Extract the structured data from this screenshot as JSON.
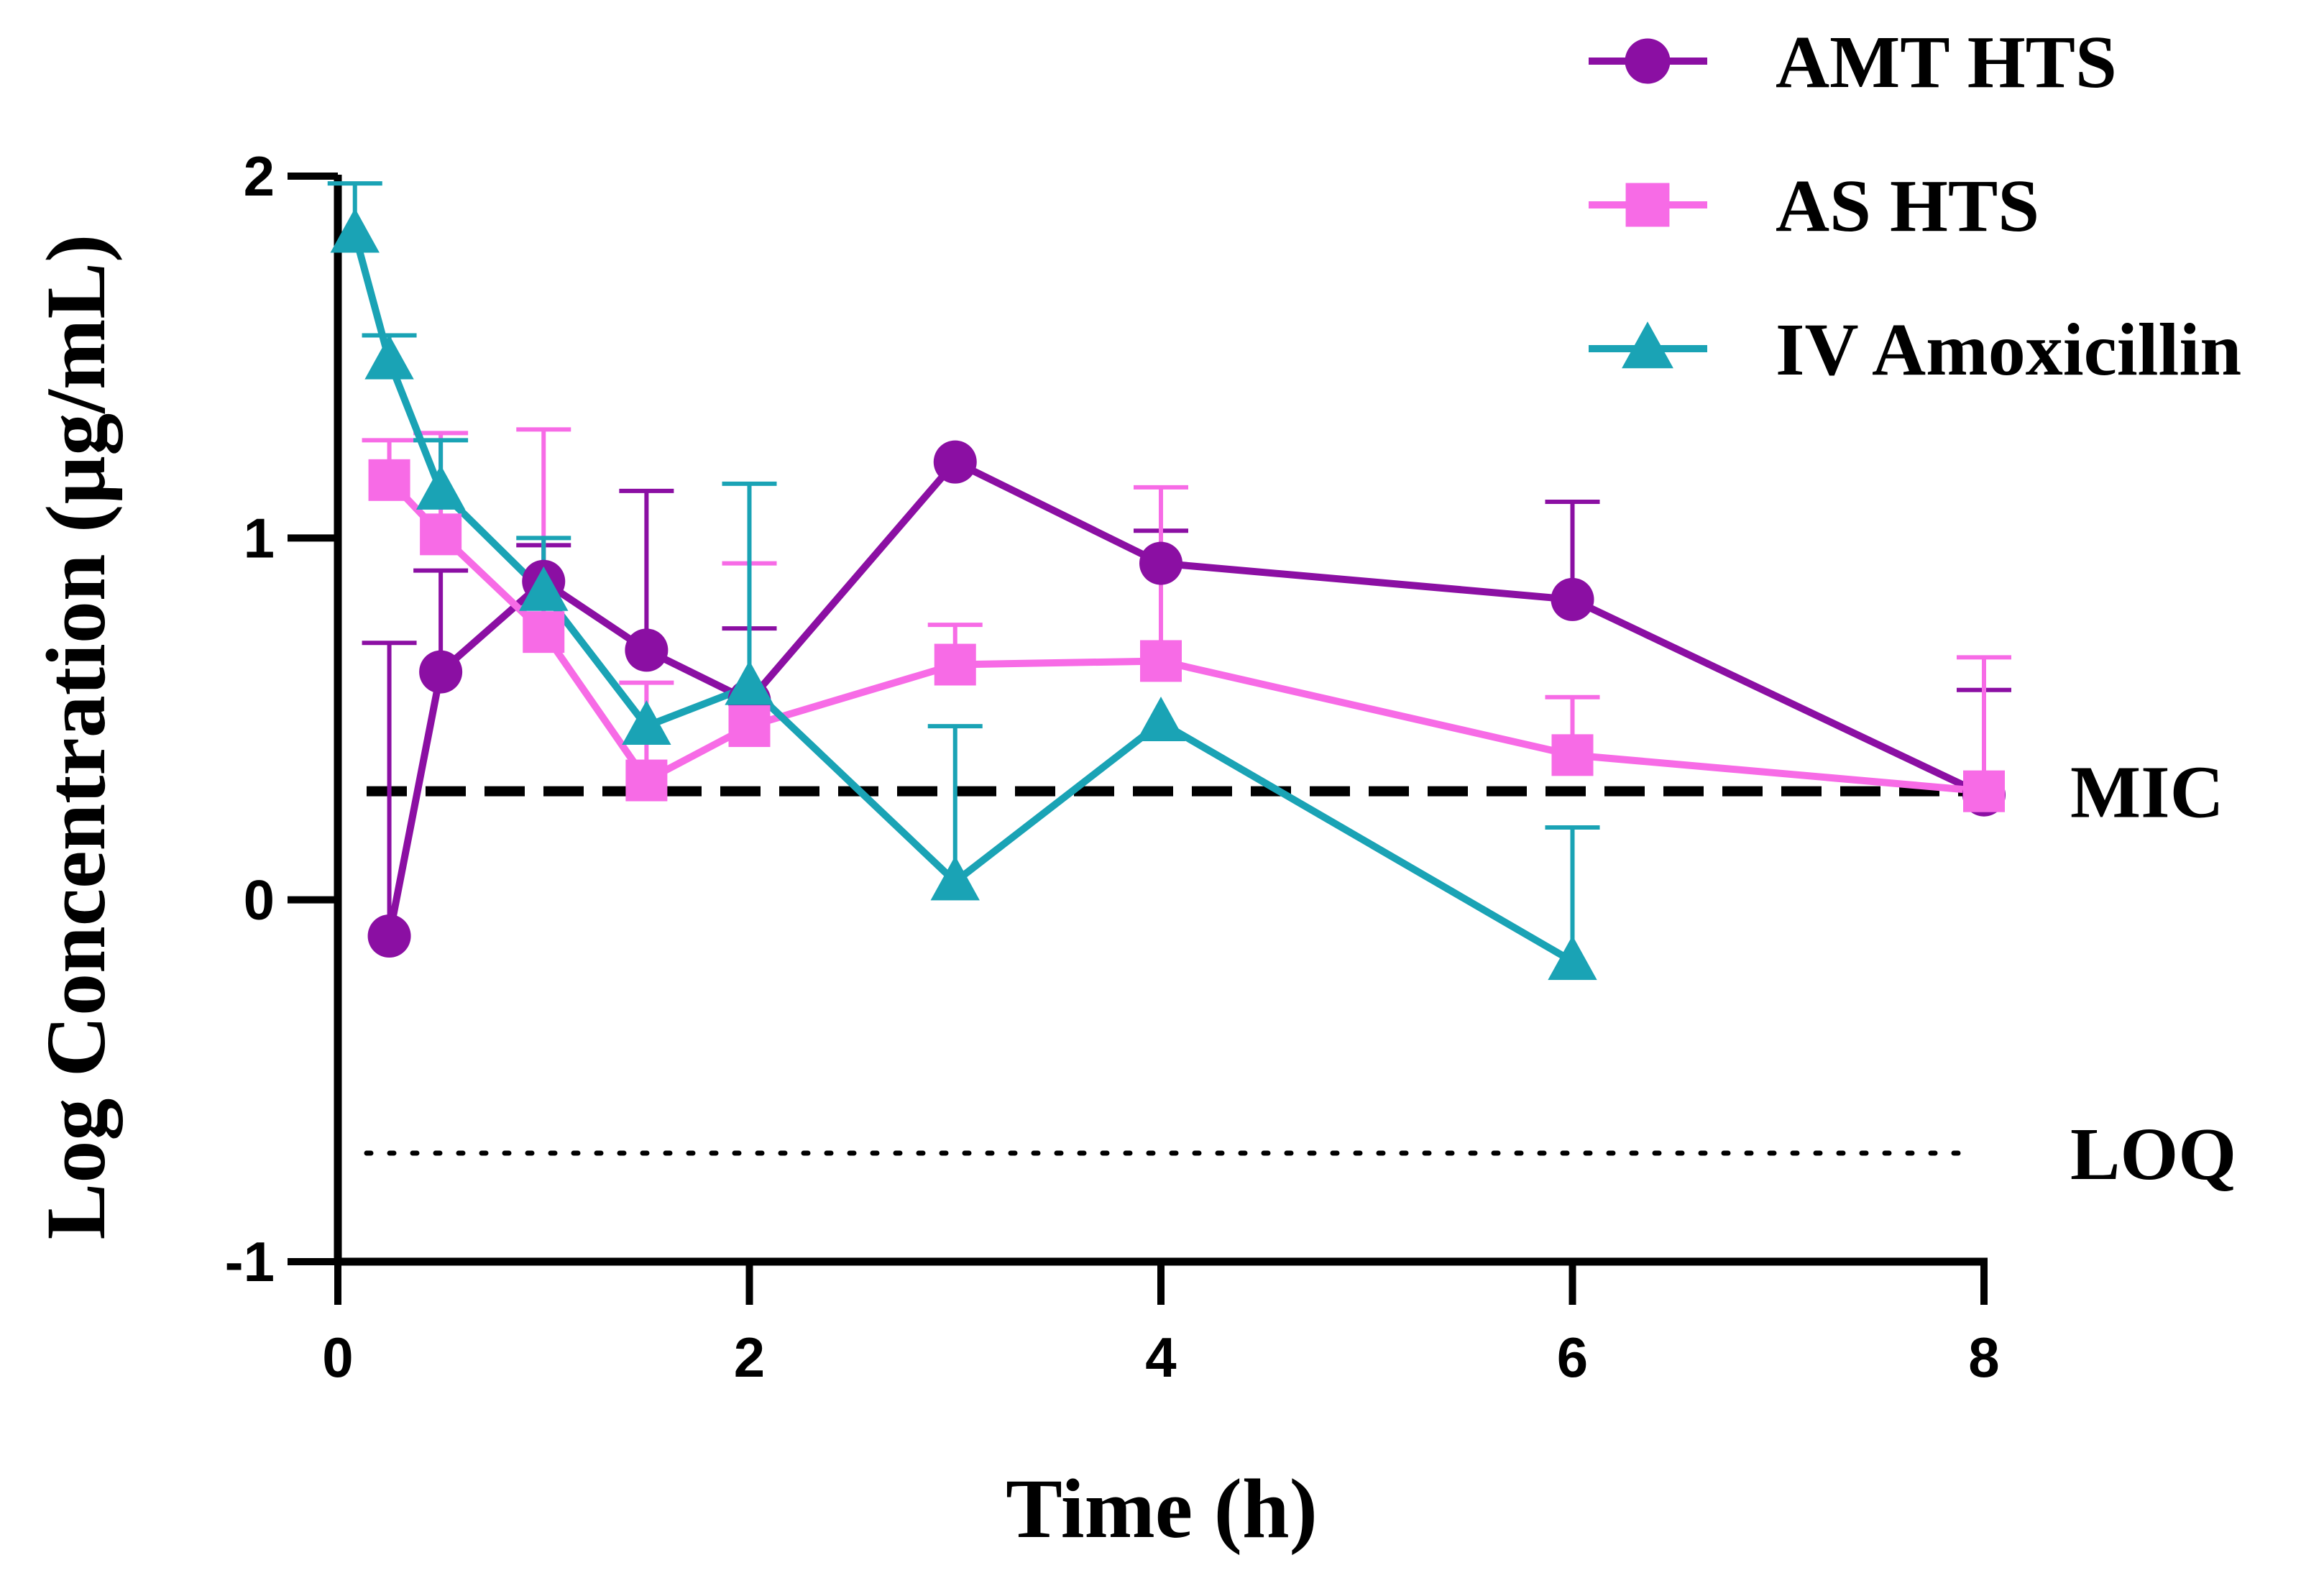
{
  "chart_data": {
    "type": "line",
    "title": "",
    "xlabel": "Time (h)",
    "ylabel": "Log Concentration (µg/mL)",
    "xlim": [
      0,
      8
    ],
    "ylim": [
      -1,
      2
    ],
    "x_ticks": [
      0,
      2,
      4,
      6,
      8
    ],
    "y_ticks": [
      -1,
      0,
      1,
      2
    ],
    "x_tick_labels": [
      "0",
      "2",
      "4",
      "6",
      "8"
    ],
    "y_tick_labels": [
      "-1",
      "0",
      "1",
      "2"
    ],
    "grid": false,
    "legend_position": "top-right",
    "series": [
      {
        "name": "AMT HTS",
        "color": "#8b0fa3",
        "marker": "circle",
        "x": [
          0.25,
          0.5,
          1,
          1.5,
          2,
          3,
          4,
          6,
          8
        ],
        "y": [
          -0.1,
          0.63,
          0.88,
          0.69,
          0.55,
          1.21,
          0.93,
          0.83,
          0.29
        ],
        "error_upper": [
          0.71,
          0.91,
          0.98,
          1.13,
          0.75,
          1.21,
          1.02,
          1.1,
          0.58
        ]
      },
      {
        "name": "AS HTS",
        "color": "#f76be6",
        "marker": "square",
        "x": [
          0.25,
          0.5,
          1,
          1.5,
          2,
          3,
          4,
          6,
          8
        ],
        "y": [
          1.16,
          1.01,
          0.74,
          0.33,
          0.48,
          0.65,
          0.66,
          0.4,
          0.3
        ],
        "error_upper": [
          1.27,
          1.29,
          1.3,
          0.6,
          0.93,
          0.76,
          1.14,
          0.56,
          0.67
        ]
      },
      {
        "name": "IV Amoxicillin",
        "color": "#1aa3b5",
        "marker": "triangle",
        "x": [
          0.083,
          0.25,
          0.5,
          1,
          1.5,
          2,
          3,
          4,
          6
        ],
        "y": [
          1.84,
          1.49,
          1.13,
          0.85,
          0.48,
          0.59,
          0.05,
          0.49,
          -0.17
        ],
        "error_upper": [
          1.98,
          1.56,
          1.27,
          1.0,
          0.48,
          1.15,
          0.48,
          0.49,
          0.2
        ]
      }
    ],
    "reference_lines": [
      {
        "label": "MIC",
        "y": 0.3,
        "style": "dashed"
      },
      {
        "label": "LOQ",
        "y": -0.7,
        "style": "dotted"
      }
    ]
  }
}
